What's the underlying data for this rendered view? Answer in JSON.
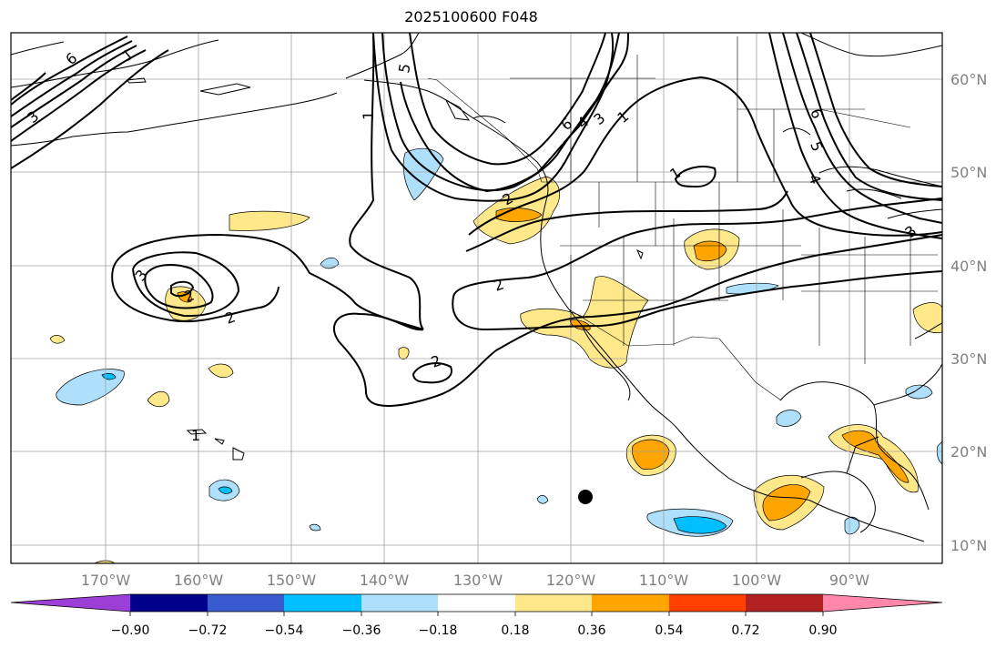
{
  "title": "2025100600 F048",
  "lon_ticks": [
    "170°W",
    "160°W",
    "150°W",
    "140°W",
    "130°W",
    "120°W",
    "110°W",
    "100°W",
    "90°W"
  ],
  "lat_ticks": [
    "60°N",
    "50°N",
    "40°N",
    "30°N",
    "20°N",
    "10°N"
  ],
  "colorbar": {
    "ticks": [
      "−0.90",
      "−0.72",
      "−0.54",
      "−0.36",
      "−0.18",
      "0.18",
      "0.36",
      "0.54",
      "0.72",
      "0.90"
    ],
    "colors": [
      "#9b3fd6",
      "#00008b",
      "#3a5bcf",
      "#00bfff",
      "#aee0fb",
      "#ffffff",
      "#ffe88a",
      "#ffa500",
      "#ff4000",
      "#b22222",
      "#ff88aa"
    ]
  },
  "contour_labels": [
    "6",
    "1",
    "3",
    "1",
    "5",
    "6",
    "4",
    "3",
    "1",
    "1",
    "6",
    "5",
    "4",
    "3",
    "2",
    "3",
    "2",
    "2",
    "2",
    "2",
    "1"
  ],
  "fill_colors": {
    "light_yellow": "#ffe88a",
    "orange": "#ffa500",
    "light_blue": "#aee0fb",
    "blue": "#00bfff"
  }
}
